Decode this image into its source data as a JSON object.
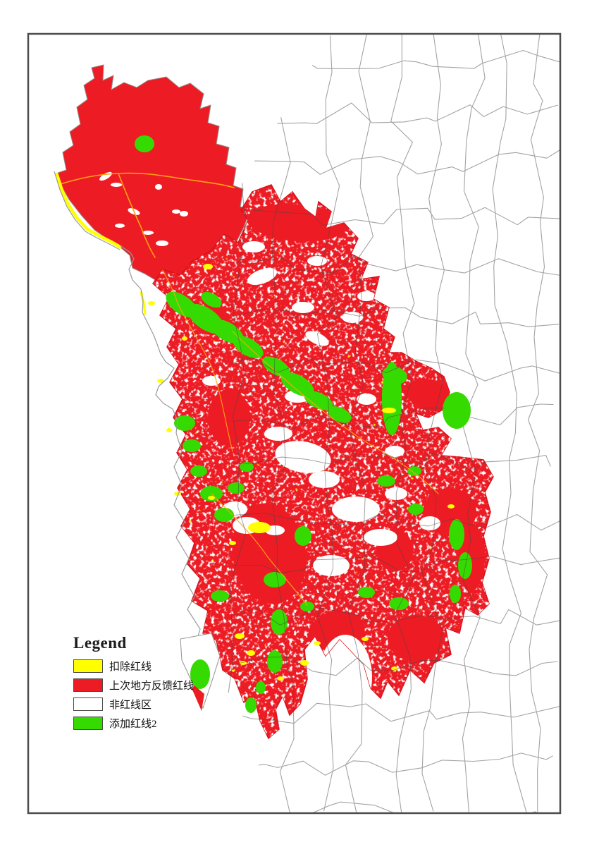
{
  "legend": {
    "title": "Legend",
    "items": [
      {
        "key": "deduct-redline",
        "label": "扣除红线",
        "color": "#ffff00"
      },
      {
        "key": "previous-feedback-redline",
        "label": "上次地方反馈红线",
        "color": "#ed1c24"
      },
      {
        "key": "non-redline-area",
        "label": "非红线区",
        "color": "#ffffff"
      },
      {
        "key": "added-redline-2",
        "label": "添加红线2",
        "color": "#35db00"
      }
    ]
  },
  "map": {
    "frame_color": "#4d4d4d",
    "colors": {
      "previous_feedback_redline": "#ed1c24",
      "added_redline_2": "#35db00",
      "deduct_redline": "#ffff00",
      "non_redline": "#ffffff",
      "county_boundary": "#a3a3a3",
      "road": "#ffa312"
    }
  }
}
